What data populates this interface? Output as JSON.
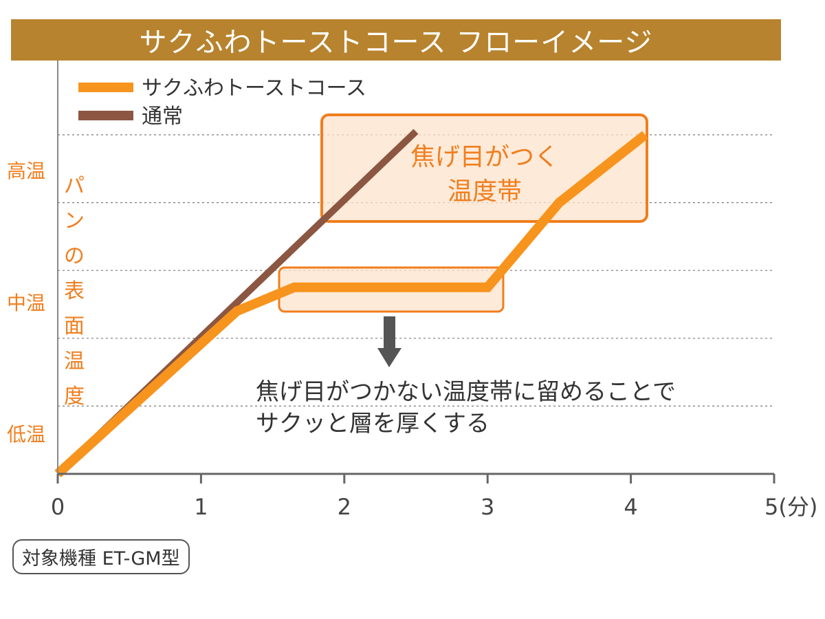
{
  "title": "サクふわトーストコース フローイメージ",
  "model_note": "対象機種 ET-GM型",
  "colors": {
    "title_bg": "#b8832e",
    "toast_course": "#f7941d",
    "normal": "#8b5742",
    "accent_text": "#f07e1e",
    "box_fill": "#fde3cc",
    "box_stroke": "#f07e1e",
    "arrow": "#555555"
  },
  "annotations": {
    "browning_zone": [
      "焦げ目がつく",
      "温度帯"
    ],
    "explanation": [
      "焦げ目がつかない温度帯に留めることで",
      "サクッと層を厚くする"
    ]
  },
  "chart_data": {
    "type": "line",
    "xlabel": "5(分)",
    "ylabel": "パンの表面温度",
    "xlim": [
      0,
      5
    ],
    "x_ticks": [
      "0",
      "1",
      "2",
      "3",
      "4",
      "5(分)"
    ],
    "y_ticks": [
      "低温",
      "中温",
      "高温"
    ],
    "ylim": [
      0,
      5
    ],
    "y_gridlines": [
      1,
      2,
      3,
      4,
      5
    ],
    "legend_position": "top-left",
    "series": [
      {
        "name": "サクふわトーストコース",
        "color": "#f7941d",
        "points": [
          [
            0,
            0
          ],
          [
            1.25,
            2.4
          ],
          [
            1.65,
            2.75
          ],
          [
            3.0,
            2.75
          ],
          [
            3.5,
            4.0
          ],
          [
            4.1,
            5.0
          ]
        ]
      },
      {
        "name": "通常",
        "color": "#8b5742",
        "points": [
          [
            0,
            0
          ],
          [
            2.5,
            5.05
          ]
        ]
      }
    ]
  }
}
